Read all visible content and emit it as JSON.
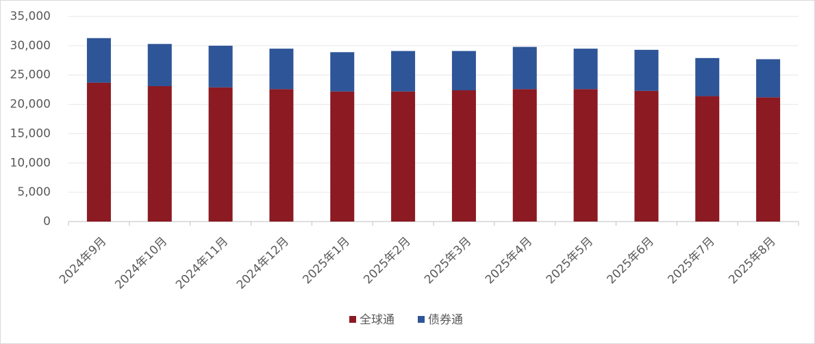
{
  "chart_data": {
    "type": "stacked_bar",
    "categories": [
      "2024年9月",
      "2024年10月",
      "2024年11月",
      "2024年12月",
      "2025年1月",
      "2025年2月",
      "2025年3月",
      "2025年4月",
      "2025年5月",
      "2025年6月",
      "2025年7月",
      "2025年8月"
    ],
    "series": [
      {
        "name": "全球通",
        "color": "#8b1a22",
        "values": [
          23700,
          23100,
          22900,
          22600,
          22200,
          22200,
          22400,
          22600,
          22600,
          22300,
          21400,
          21200
        ]
      },
      {
        "name": "债券通",
        "color": "#2e5597",
        "values": [
          7600,
          7200,
          7100,
          6900,
          6700,
          6900,
          6700,
          7200,
          6900,
          7000,
          6500,
          6500
        ]
      }
    ],
    "ylim": [
      0,
      35000
    ],
    "yticks": [
      0,
      {
        "value": 5000,
        "label": "5,000"
      },
      {
        "value": 10000,
        "label": "10,000"
      },
      {
        "value": 15000,
        "label": "15,000"
      },
      {
        "value": 20000,
        "label": "20,000"
      },
      {
        "value": 25000,
        "label": "25,000"
      },
      {
        "value": 30000,
        "label": "30,000"
      },
      {
        "value": 35000,
        "label": "35,000"
      }
    ],
    "grid": true,
    "legend": "bottom"
  }
}
